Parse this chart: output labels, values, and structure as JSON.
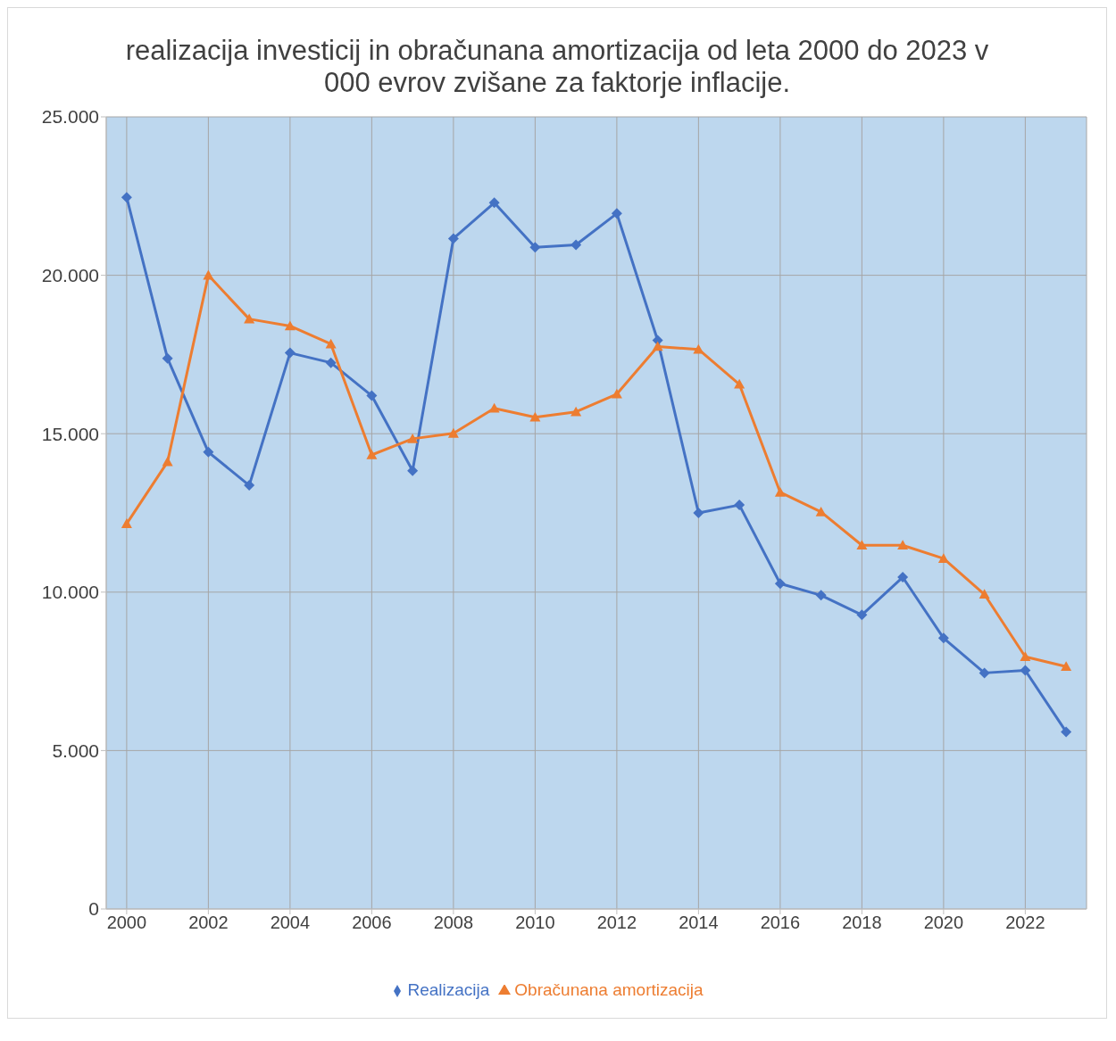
{
  "chart_data": {
    "type": "line",
    "title": "realizacija investicij in obračunana amortizacija od leta 2000 do 2023 v 000 evrov zvišane za faktorje inflacije.",
    "x": [
      2000,
      2001,
      2002,
      2003,
      2004,
      2005,
      2006,
      2007,
      2008,
      2009,
      2010,
      2011,
      2012,
      2013,
      2014,
      2015,
      2016,
      2017,
      2018,
      2019,
      2020,
      2021,
      2022,
      2023
    ],
    "series": [
      {
        "name": "Realizacija",
        "color": "#4472c4",
        "marker": "diamond",
        "values": [
          22460,
          17380,
          14420,
          13370,
          17550,
          17240,
          16200,
          13830,
          21160,
          22290,
          20880,
          20960,
          21950,
          17950,
          12500,
          12750,
          10270,
          9900,
          9280,
          10470,
          8550,
          7450,
          7530,
          5590
        ]
      },
      {
        "name": "Obračunana amortizacija",
        "color": "#ed7d31",
        "marker": "triangle",
        "values": [
          12160,
          14110,
          20000,
          18620,
          18400,
          17830,
          14330,
          14840,
          15010,
          15800,
          15520,
          15690,
          16250,
          17750,
          17660,
          16560,
          13150,
          12530,
          11480,
          11480,
          11060,
          9930,
          7960,
          7650
        ]
      }
    ],
    "xlim": [
      1999.5,
      2023.5
    ],
    "xticks": [
      2000,
      2002,
      2004,
      2006,
      2008,
      2010,
      2012,
      2014,
      2016,
      2018,
      2020,
      2022
    ],
    "ylim": [
      0,
      25000
    ],
    "yticks": [
      0,
      {
        "value": 5000,
        "label": "5.000"
      },
      {
        "value": 10000,
        "label": "10.000"
      },
      {
        "value": 15000,
        "label": "15.000"
      },
      {
        "value": 20000,
        "label": "20.000"
      },
      {
        "value": 25000,
        "label": "25.000"
      }
    ],
    "grid": true,
    "legend": "bottom",
    "line_style": "solid"
  }
}
